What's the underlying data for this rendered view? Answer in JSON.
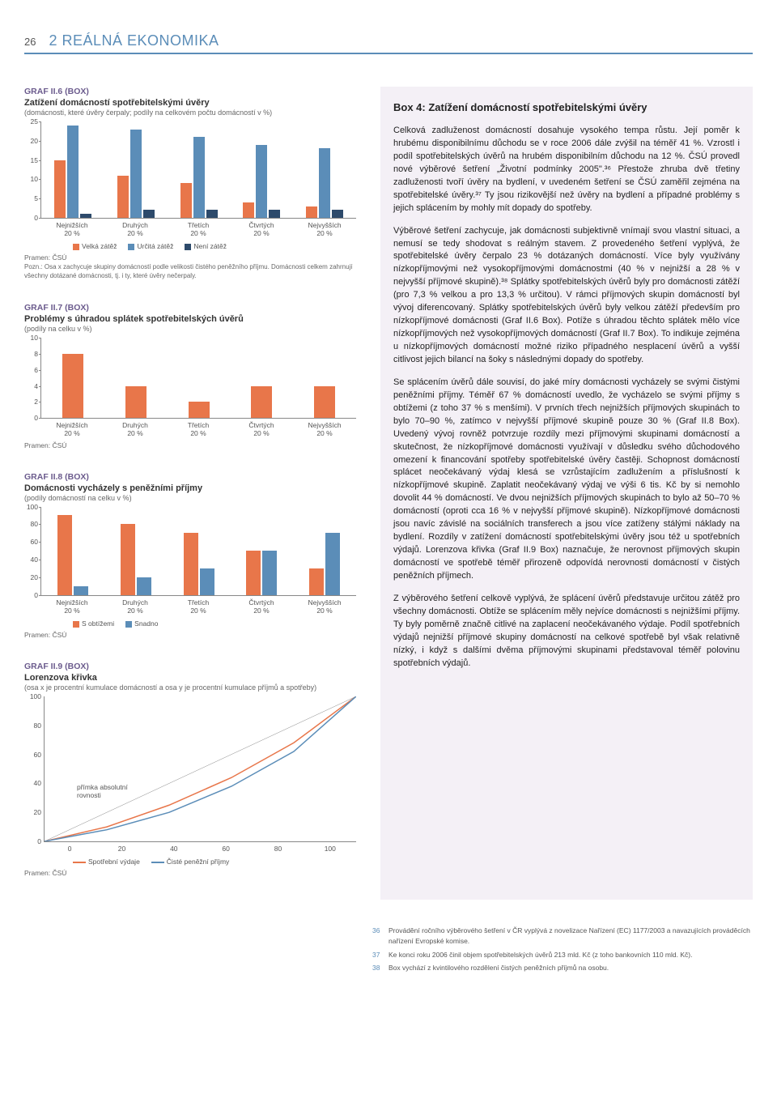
{
  "page_number": "26",
  "section_title": "2 REÁLNÁ EKONOMIKA",
  "colors": {
    "orange": "#e8764a",
    "blue_mid": "#5b8db8",
    "blue_dark": "#2d4a6b",
    "chart_axis": "#888888",
    "title_purple": "#6b5b8d",
    "bg_right": "#f4f0f6"
  },
  "chart6": {
    "title_small": "GRAF II.6 (BOX)",
    "title": "Zatížení domácností spotřebitelskými úvěry",
    "subnote": "(domácnosti, které úvěry čerpaly; podíly na celkovém počtu domácností v %)",
    "type": "bar",
    "ylim": [
      0,
      25
    ],
    "ytick_step": 5,
    "categories": [
      "Nejnižších\n20 %",
      "Druhých\n20 %",
      "Třetích\n20 %",
      "Čtvrtých\n20 %",
      "Nejvyšších\n20 %"
    ],
    "series": [
      {
        "label": "Velká zátěž",
        "color": "#e8764a",
        "values": [
          15,
          11,
          9,
          4,
          3
        ]
      },
      {
        "label": "Určitá zátěž",
        "color": "#5b8db8",
        "values": [
          24,
          23,
          21,
          19,
          18
        ]
      },
      {
        "label": "Není zátěž",
        "color": "#2d4a6b",
        "values": [
          1,
          2,
          2,
          2,
          2
        ]
      }
    ],
    "source": "Pramen: ČSÚ",
    "note": "Pozn.: Osa x zachycuje skupiny domácností podle velikosti čistého peněžního příjmu. Domácnosti celkem zahrnují všechny dotázané domácnosti, tj. i ty, které úvěry nečerpaly."
  },
  "chart7": {
    "title_small": "GRAF II.7 (BOX)",
    "title": "Problémy s úhradou splátek spotřebitelských úvěrů",
    "subnote": "(podíly na celku v %)",
    "type": "bar",
    "ylim": [
      0,
      10
    ],
    "ytick_step": 2,
    "categories": [
      "Nejnižších\n20 %",
      "Druhých\n20 %",
      "Třetích\n20 %",
      "Čtvrtých\n20 %",
      "Nejvyšších\n20 %"
    ],
    "series": [
      {
        "label": "",
        "color": "#e8764a",
        "values": [
          8,
          4,
          2,
          4,
          4
        ]
      }
    ],
    "source": "Pramen: ČSÚ"
  },
  "chart8": {
    "title_small": "GRAF II.8 (BOX)",
    "title": "Domácnosti vycházely s peněžními příjmy",
    "subnote": "(podíly domácností na celku v %)",
    "type": "bar",
    "ylim": [
      0,
      100
    ],
    "ytick_step": 20,
    "categories": [
      "Nejnižších\n20 %",
      "Druhých\n20 %",
      "Třetích\n20 %",
      "Čtvrtých\n20 %",
      "Nejvyšších\n20 %"
    ],
    "series": [
      {
        "label": "S obtížemi",
        "color": "#e8764a",
        "values": [
          90,
          80,
          70,
          50,
          30
        ]
      },
      {
        "label": "Snadno",
        "color": "#5b8db8",
        "values": [
          10,
          20,
          30,
          50,
          70
        ]
      }
    ],
    "source": "Pramen: ČSÚ"
  },
  "chart9": {
    "title_small": "GRAF II.9 (BOX)",
    "title": "Lorenzova křivka",
    "subnote": "(osa x je procentní kumulace domácností a osa y je procentní kumulace příjmů a spotřeby)",
    "type": "line",
    "ylim": [
      0,
      100
    ],
    "ytick_step": 20,
    "xlim": [
      0,
      100
    ],
    "xtick_step": 20,
    "equality_label": "přímka absolutní\nrovnosti",
    "series": [
      {
        "label": "Spotřební výdaje",
        "color": "#e8764a",
        "points": [
          [
            0,
            0
          ],
          [
            20,
            10
          ],
          [
            40,
            25
          ],
          [
            60,
            44
          ],
          [
            80,
            68
          ],
          [
            100,
            100
          ]
        ]
      },
      {
        "label": "Čisté peněžní příjmy",
        "color": "#5b8db8",
        "points": [
          [
            0,
            0
          ],
          [
            20,
            8
          ],
          [
            40,
            20
          ],
          [
            60,
            38
          ],
          [
            80,
            62
          ],
          [
            100,
            100
          ]
        ]
      }
    ],
    "equality_line": {
      "color": "#888888",
      "points": [
        [
          0,
          0
        ],
        [
          100,
          100
        ]
      ]
    },
    "source": "Pramen: ČSÚ"
  },
  "box": {
    "title": "Box 4: Zatížení domácností spotřebitelskými úvěry",
    "p1": "Celková zadluženost domácností dosahuje vysokého tempa růstu. Její poměr k hrubému disponibilnímu důchodu se v roce 2006 dále zvýšil na téměř 41 %. Vzrostl i podíl spotřebitelských úvěrů na hrubém disponibilním důchodu na 12 %. ČSÚ provedl nové výběrové šetření „Životní podmínky 2005\".³⁶ Přestože zhruba dvě třetiny zadluženosti tvoří úvěry na bydlení, v uvedeném šetření se ČSÚ zaměřil zejména na spotřebitelské úvěry.³⁷ Ty jsou rizikovější než úvěry na bydlení a případné problémy s jejich splácením by mohly mít dopady do spotřeby.",
    "p2": "Výběrové šetření zachycuje, jak domácnosti subjektivně vnímají svou vlastní situaci, a nemusí se tedy shodovat s reálným stavem. Z provedeného šetření vyplývá, že spotřebitelské úvěry čerpalo 23 % dotázaných domácností. Více byly využívány nízkopříjmovými než vysokopříjmovými domácnostmi (40 % v nejnižší a 28 % v nejvyšší příjmové skupině).³⁸ Splátky spotřebitelských úvěrů byly pro domácnosti zátěží (pro 7,3 % velkou a pro 13,3 % určitou). V rámci příjmových skupin domácností byl vývoj diferencovaný. Splátky spotřebitelských úvěrů byly velkou zátěží především pro nízkopříjmové domácnosti (Graf II.6 Box). Potíže s úhradou těchto splátek mělo více nízkopříjmových než vysokopříjmových domácností (Graf II.7 Box). To indikuje zejména u nízkopříjmových domácností možné riziko případného nesplacení úvěrů a vyšší citlivost jejich bilancí na šoky s následnými dopady do spotřeby.",
    "p3": "Se splácením úvěrů dále souvisí, do jaké míry domácnosti vycházely se svými čistými peněžními příjmy. Téměř 67 % domácností uvedlo, že vycházelo se svými příjmy s obtížemi (z toho 37 % s menšími). V prvních třech nejnižších příjmových skupinách to bylo 70–90 %, zatímco v nejvyšší příjmové skupině pouze 30 % (Graf II.8 Box). Uvedený vývoj rovněž potvrzuje rozdíly mezi příjmovými skupinami domácností a skutečnost, že nízkopříjmové domácnosti využívají v důsledku svého důchodového omezení k financování spotřeby spotřebitelské úvěry častěji. Schopnost domácností splácet neočekávaný výdaj klesá se vzrůstajícím zadlužením a příslušností k nízkopříjmové skupině. Zaplatit neočekávaný výdaj ve výši 6 tis. Kč by si nemohlo dovolit 44 % domácností. Ve dvou nejnižších příjmových skupinách to bylo až 50–70 % domácností (oproti cca 16 % v nejvyšší příjmové skupině). Nízkopříjmové domácnosti jsou navíc závislé na sociálních transferech a jsou více zatíženy stálými náklady na bydlení. Rozdíly v zatížení domácností spotřebitelskými úvěry jsou též u spotřebních výdajů. Lorenzova křivka (Graf II.9 Box) naznačuje, že nerovnost příjmových skupin domácností ve spotřebě téměř přirozeně odpovídá nerovnosti domácností v čistých peněžních příjmech.",
    "p4": "Z výběrového šetření celkově vyplývá, že splácení úvěrů představuje určitou zátěž pro všechny domácnosti. Obtíže se splácením měly nejvíce domácnosti s nejnižšími příjmy. Ty byly poměrně značně citlivé na zaplacení neočekávaného výdaje. Podíl spotřebních výdajů nejnižší příjmové skupiny domácností na celkové spotřebě byl však relativně nízký, i když s dalšími dvěma příjmovými skupinami představoval téměř polovinu spotřebních výdajů."
  },
  "footnotes": [
    {
      "num": "36",
      "text": "Provádění ročního výběrového šetření v ČR vyplývá z novelizace Nařízení (EC) 1177/2003 a navazujících prováděcích nařízení Evropské komise."
    },
    {
      "num": "37",
      "text": "Ke konci roku 2006 činil objem spotřebitelských úvěrů 213 mld. Kč (z toho bankovních 110 mld. Kč)."
    },
    {
      "num": "38",
      "text": "Box vychází z kvintilového rozdělení čistých peněžních příjmů na osobu."
    }
  ]
}
